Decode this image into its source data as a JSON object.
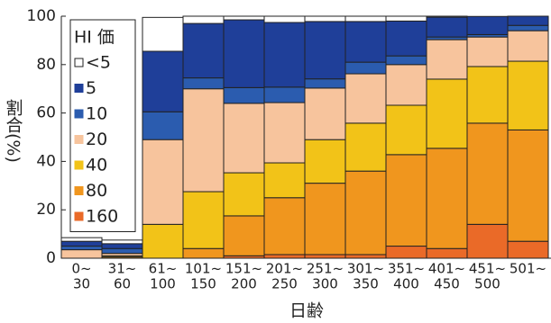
{
  "chart_data": {
    "type": "stacked_bar",
    "y_label": "割合(%)",
    "x_label": "日齢",
    "legend_title": "HI 価",
    "categories": [
      [
        "0~",
        "30"
      ],
      [
        "31~",
        "60"
      ],
      [
        "61~",
        "100"
      ],
      [
        "101~",
        "150"
      ],
      [
        "151~",
        "200"
      ],
      [
        "201~",
        "250"
      ],
      [
        "251~",
        "300"
      ],
      [
        "301~",
        "350"
      ],
      [
        "351~",
        "400"
      ],
      [
        "401~",
        "450"
      ],
      [
        "451~",
        "500"
      ],
      [
        "501~"
      ]
    ],
    "ylim": [
      0,
      100
    ],
    "yticks": [
      0,
      20,
      40,
      60,
      80,
      100
    ],
    "legend_position": "upper left",
    "series": [
      {
        "name": "160",
        "color": "#ea6a28",
        "values": [
          0,
          0,
          0,
          0,
          1,
          1.5,
          1.5,
          1.5,
          5,
          4,
          14,
          7
        ]
      },
      {
        "name": "80",
        "color": "#f0961e",
        "values": [
          0,
          0.5,
          0,
          4,
          16.5,
          23.5,
          29.5,
          34.5,
          37.8,
          41.4,
          41.8,
          46
        ]
      },
      {
        "name": "40",
        "color": "#f2c318",
        "values": [
          0,
          0.5,
          14,
          23.5,
          17.8,
          14.4,
          18,
          19.8,
          20.4,
          28.6,
          23.4,
          28.4
        ]
      },
      {
        "name": "20",
        "color": "#f7c49d",
        "values": [
          3.5,
          1,
          35,
          42.5,
          28.7,
          24.9,
          21.3,
          20.4,
          16.8,
          16.3,
          12.2,
          12.6
        ]
      },
      {
        "name": "10",
        "color": "#2b5caf",
        "values": [
          1.5,
          2,
          11.5,
          4.5,
          6.5,
          6.4,
          3.8,
          4.8,
          3.6,
          1.1,
          1,
          2.2
        ]
      },
      {
        "name": "5",
        "color": "#1f3f99",
        "values": [
          2,
          2,
          25,
          22.5,
          28,
          26.7,
          23.7,
          16.8,
          14.4,
          8.2,
          7.5,
          3.8
        ]
      },
      {
        "name": "<5",
        "color": "#ffffff",
        "values": [
          1.5,
          1.5,
          14,
          3,
          1.5,
          2.6,
          2.2,
          2.2,
          2,
          0.4,
          0,
          0
        ]
      }
    ]
  }
}
